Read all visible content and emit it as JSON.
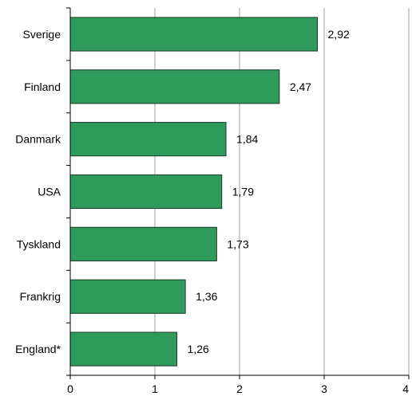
{
  "chart_data": {
    "type": "bar",
    "orientation": "horizontal",
    "title": "",
    "xlabel": "",
    "ylabel": "",
    "categories": [
      "Sverige",
      "Finland",
      "Danmark",
      "USA",
      "Tyskland",
      "Frankrig",
      "England*"
    ],
    "values": [
      2.92,
      2.47,
      1.84,
      1.79,
      1.73,
      1.36,
      1.26
    ],
    "value_labels": [
      "2,92",
      "2,47",
      "1,84",
      "1,79",
      "1,73",
      "1,36",
      "1,26"
    ],
    "xlim": [
      0,
      4
    ],
    "xticks": [
      0,
      1,
      2,
      3,
      4
    ],
    "xtick_labels": [
      "0",
      "1",
      "2",
      "3",
      "4"
    ],
    "grid": "vertical",
    "legend": "none",
    "colors": {
      "bar_fill": "#2e9a5c",
      "bar_stroke": "#1c3b28",
      "grid": "#a0a0a0",
      "axis": "#000000"
    }
  }
}
